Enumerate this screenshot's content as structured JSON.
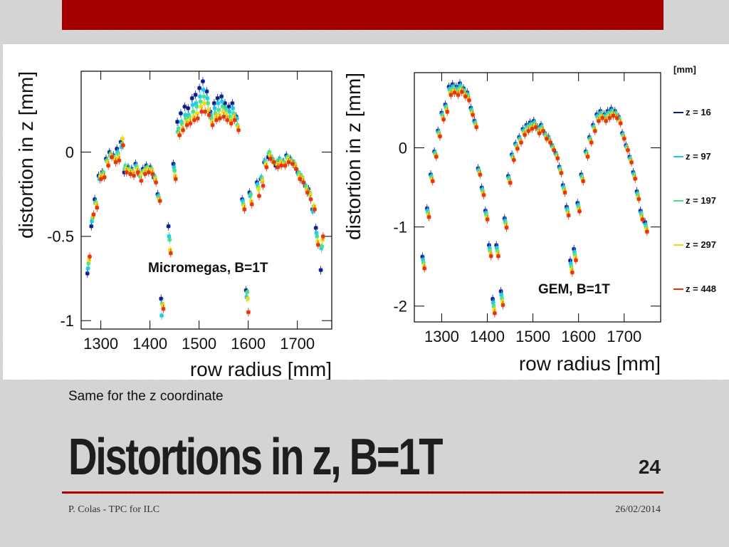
{
  "slide": {
    "subtitle": "Same for the z coordinate",
    "title": "Distortions in z, B=1T",
    "slide_number": "24",
    "footer_left": "P. Colas - TPC for ILC",
    "footer_right": "26/02/2014",
    "accent_color": "#a40000"
  },
  "chart_data": [
    {
      "type": "scatter",
      "annotation": "Micromegas, B=1T",
      "xlabel": "row radius [mm]",
      "ylabel": "distortion in z [mm]",
      "xlim": [
        1260,
        1770
      ],
      "ylim": [
        -1.05,
        0.48
      ],
      "xticks": [
        1300,
        1400,
        1500,
        1600,
        1700
      ],
      "yticks": [
        0,
        -0.5,
        -1
      ],
      "ytick_labels": [
        "0",
        "-0.5",
        "-1"
      ],
      "series_colors": [
        "#0a1a8c",
        "#19c8f0",
        "#46e08c",
        "#f0dc14",
        "#e8320a"
      ],
      "x": [
        1275,
        1283,
        1290,
        1298,
        1305,
        1313,
        1320,
        1328,
        1335,
        1343,
        1350,
        1358,
        1365,
        1373,
        1380,
        1388,
        1395,
        1403,
        1410,
        1418,
        1425,
        1440,
        1450,
        1458,
        1465,
        1473,
        1480,
        1488,
        1495,
        1503,
        1510,
        1518,
        1525,
        1533,
        1540,
        1548,
        1555,
        1563,
        1570,
        1578,
        1590,
        1598,
        1605,
        1620,
        1628,
        1635,
        1643,
        1650,
        1658,
        1665,
        1673,
        1680,
        1688,
        1695,
        1703,
        1710,
        1718,
        1725,
        1733,
        1740,
        1750
      ],
      "series": [
        {
          "values": [
            -0.72,
            -0.44,
            -0.28,
            -0.14,
            -0.12,
            -0.04,
            0.0,
            -0.02,
            0.02,
            0.06,
            -0.12,
            -0.09,
            -0.1,
            -0.07,
            -0.13,
            -0.1,
            -0.08,
            -0.09,
            -0.15,
            -0.25,
            -0.87,
            -0.44,
            -0.07,
            0.18,
            0.23,
            0.27,
            0.26,
            0.32,
            0.34,
            0.38,
            0.42,
            0.36,
            0.24,
            0.29,
            0.32,
            0.33,
            0.29,
            0.27,
            0.29,
            0.21,
            -0.28,
            -0.82,
            -0.24,
            -0.18,
            -0.16,
            -0.06,
            -0.03,
            -0.04,
            -0.08,
            -0.05,
            -0.06,
            -0.02,
            -0.04,
            -0.07,
            -0.12,
            -0.15,
            -0.2,
            -0.22,
            -0.34,
            -0.45,
            -0.7
          ]
        },
        {
          "values": [
            -0.69,
            -0.41,
            -0.3,
            -0.16,
            -0.13,
            -0.05,
            -0.02,
            -0.03,
            0.0,
            0.03,
            -0.1,
            -0.1,
            -0.11,
            -0.08,
            -0.12,
            -0.11,
            -0.09,
            -0.1,
            -0.14,
            -0.26,
            -0.97,
            -0.5,
            -0.09,
            0.12,
            0.18,
            0.22,
            0.22,
            0.28,
            0.29,
            0.33,
            0.37,
            0.32,
            0.22,
            0.26,
            0.29,
            0.3,
            0.26,
            0.24,
            0.26,
            0.2,
            -0.29,
            -0.86,
            -0.26,
            -0.19,
            -0.15,
            -0.05,
            -0.01,
            -0.04,
            -0.06,
            -0.04,
            -0.06,
            -0.03,
            -0.05,
            -0.07,
            -0.13,
            -0.16,
            -0.2,
            -0.25,
            -0.35,
            -0.48,
            -0.57
          ]
        },
        {
          "values": [
            -0.66,
            -0.39,
            -0.3,
            -0.15,
            -0.12,
            -0.05,
            -0.01,
            -0.04,
            -0.01,
            0.05,
            -0.08,
            -0.1,
            -0.12,
            -0.09,
            -0.14,
            -0.12,
            -0.09,
            -0.1,
            -0.15,
            -0.27,
            -0.9,
            -0.52,
            -0.11,
            0.14,
            0.17,
            0.2,
            0.21,
            0.24,
            0.27,
            0.3,
            0.33,
            0.29,
            0.2,
            0.23,
            0.25,
            0.27,
            0.25,
            0.21,
            0.23,
            0.16,
            -0.31,
            -0.83,
            -0.25,
            -0.21,
            -0.16,
            -0.07,
            0.0,
            -0.04,
            -0.07,
            -0.05,
            -0.06,
            -0.03,
            -0.05,
            -0.07,
            -0.12,
            -0.15,
            -0.21,
            -0.24,
            -0.33,
            -0.5,
            -0.56
          ]
        },
        {
          "values": [
            -0.64,
            -0.38,
            -0.31,
            -0.14,
            -0.14,
            -0.06,
            -0.02,
            -0.04,
            -0.03,
            0.08,
            -0.1,
            -0.11,
            -0.12,
            -0.1,
            -0.13,
            -0.11,
            -0.1,
            -0.11,
            -0.16,
            -0.28,
            -0.91,
            -0.58,
            -0.14,
            0.11,
            0.14,
            0.18,
            0.19,
            0.21,
            0.23,
            0.27,
            0.29,
            0.25,
            0.18,
            0.21,
            0.22,
            0.24,
            0.22,
            0.19,
            0.21,
            0.15,
            -0.32,
            -0.87,
            -0.29,
            -0.22,
            -0.17,
            -0.07,
            -0.02,
            -0.06,
            -0.07,
            -0.06,
            -0.07,
            -0.04,
            -0.06,
            -0.08,
            -0.14,
            -0.16,
            -0.22,
            -0.25,
            -0.32,
            -0.53,
            -0.52
          ]
        },
        {
          "values": [
            -0.62,
            -0.37,
            -0.33,
            -0.16,
            -0.15,
            -0.08,
            -0.03,
            -0.06,
            -0.05,
            0.04,
            -0.12,
            -0.13,
            -0.14,
            -0.12,
            -0.17,
            -0.13,
            -0.12,
            -0.13,
            -0.18,
            -0.29,
            -0.93,
            -0.6,
            -0.16,
            0.1,
            0.13,
            0.16,
            0.17,
            0.19,
            0.2,
            0.24,
            0.24,
            0.22,
            0.16,
            0.19,
            0.2,
            0.21,
            0.19,
            0.17,
            0.19,
            0.13,
            -0.34,
            -0.95,
            -0.31,
            -0.26,
            -0.2,
            -0.09,
            -0.04,
            -0.06,
            -0.09,
            -0.08,
            -0.08,
            -0.06,
            -0.07,
            -0.1,
            -0.16,
            -0.18,
            -0.24,
            -0.28,
            -0.34,
            -0.55,
            -0.5
          ]
        }
      ]
    },
    {
      "type": "scatter",
      "annotation": "GEM, B=1T",
      "xlabel": "row radius [mm]",
      "ylabel": "distortion in z [mm]",
      "xlim": [
        1240,
        1780
      ],
      "ylim": [
        -2.2,
        0.95
      ],
      "xticks": [
        1300,
        1400,
        1500,
        1600,
        1700
      ],
      "yticks": [
        0,
        -1,
        -2
      ],
      "ytick_labels": [
        "0",
        "-1",
        "-2"
      ],
      "legend_title": "[mm]",
      "legend_position": "right",
      "series": [
        {
          "name": "z = 16",
          "color": "#0a1a8c"
        },
        {
          "name": "z = 97",
          "color": "#19c8f0"
        },
        {
          "name": "z = 197",
          "color": "#46e08c"
        },
        {
          "name": "z = 297",
          "color": "#f0dc14"
        },
        {
          "name": "z = 448",
          "color": "#e8320a"
        }
      ],
      "x": [
        1260,
        1270,
        1278,
        1286,
        1294,
        1302,
        1310,
        1318,
        1326,
        1334,
        1342,
        1350,
        1358,
        1366,
        1374,
        1382,
        1390,
        1398,
        1406,
        1414,
        1422,
        1432,
        1440,
        1448,
        1456,
        1464,
        1472,
        1480,
        1488,
        1496,
        1504,
        1512,
        1520,
        1528,
        1536,
        1544,
        1552,
        1560,
        1568,
        1576,
        1584,
        1592,
        1600,
        1608,
        1618,
        1626,
        1634,
        1642,
        1650,
        1658,
        1666,
        1674,
        1682,
        1690,
        1698,
        1706,
        1714,
        1722,
        1730,
        1738,
        1748
      ],
      "values": [
        -1.45,
        -0.82,
        -0.38,
        -0.08,
        0.18,
        0.4,
        0.5,
        0.72,
        0.75,
        0.72,
        0.76,
        0.7,
        0.65,
        0.46,
        0.3,
        -0.3,
        -0.55,
        -0.85,
        -1.3,
        -2.0,
        -1.3,
        -1.9,
        -0.95,
        -0.4,
        -0.12,
        0.02,
        0.1,
        0.2,
        0.25,
        0.28,
        0.3,
        0.22,
        0.25,
        0.15,
        0.1,
        0.0,
        -0.1,
        -0.28,
        -0.52,
        -0.8,
        -1.5,
        -1.35,
        -0.75,
        -0.38,
        -0.08,
        0.1,
        0.25,
        0.38,
        0.42,
        0.38,
        0.42,
        0.45,
        0.42,
        0.35,
        0.15,
        0.0,
        -0.15,
        -0.35,
        -0.6,
        -0.85,
        -1.0
      ]
    }
  ]
}
